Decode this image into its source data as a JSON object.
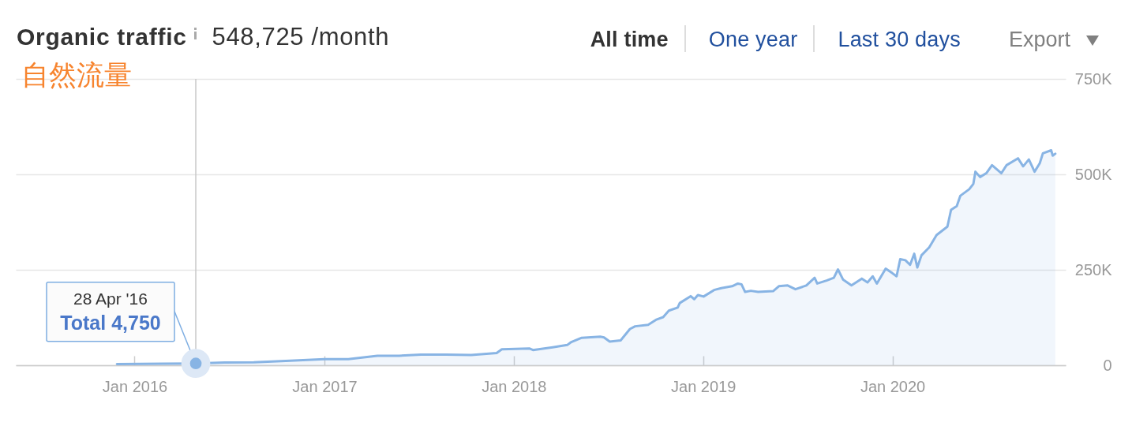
{
  "chart_data": {
    "type": "area",
    "title": "Organic traffic",
    "subtitle": "548,725 /month",
    "annotations": [
      "自然流量",
      "All time",
      "One year",
      "Last 30 days",
      "Export",
      "28 Apr '16",
      {
        "text": "Total 4,750",
        "x": "2016-04-28",
        "y": 4750
      }
    ],
    "x": [
      "2015-11-28",
      "2016-02-24",
      "2016-04-28",
      "2016-06-23",
      "2016-08-18",
      "2016-10-27",
      "2017-01-01",
      "2017-02-16",
      "2017-04-13",
      "2017-05-25",
      "2017-07-06",
      "2017-08-23",
      "2017-10-11",
      "2017-11-29",
      "2017-12-09",
      "2018-01-31",
      "2018-02-07",
      "2018-03-17",
      "2018-04-14",
      "2018-04-21",
      "2018-05-12",
      "2018-06-17",
      "2018-06-24",
      "2018-07-05",
      "2018-07-26",
      "2018-08-13",
      "2018-08-23",
      "2018-09-17",
      "2018-10-02",
      "2018-10-16",
      "2018-10-27",
      "2018-11-13",
      "2018-11-17",
      "2018-12-08",
      "2018-12-15",
      "2018-12-22",
      "2019-01-02",
      "2019-01-22",
      "2019-02-05",
      "2019-02-26",
      "2019-03-09",
      "2019-03-16",
      "2019-03-23",
      "2019-04-03",
      "2019-04-17",
      "2019-05-16",
      "2019-05-27",
      "2019-06-13",
      "2019-06-28",
      "2019-07-19",
      "2019-08-04",
      "2019-08-09",
      "2019-08-27",
      "2019-09-10",
      "2019-09-18",
      "2019-09-28",
      "2019-10-14",
      "2019-11-03",
      "2019-11-14",
      "2019-11-24",
      "2019-12-02",
      "2019-12-19",
      "2020-01-01",
      "2020-01-09",
      "2020-01-16",
      "2020-01-26",
      "2020-02-04",
      "2020-02-12",
      "2020-02-18",
      "2020-02-26",
      "2020-03-12",
      "2020-03-26",
      "2020-04-16",
      "2020-04-23",
      "2020-05-04",
      "2020-05-11",
      "2020-05-28",
      "2020-06-05",
      "2020-06-09",
      "2020-06-18",
      "2020-06-30",
      "2020-07-11",
      "2020-07-29",
      "2020-08-08",
      "2020-08-30",
      "2020-09-09",
      "2020-09-20",
      "2020-10-01",
      "2020-10-11",
      "2020-10-17",
      "2020-11-02",
      "2020-11-05",
      "2020-11-10"
    ],
    "series": [
      {
        "color": "#88b4e4",
        "values": [
          3000,
          4000,
          4750,
          7000,
          8000,
          12000,
          16000,
          16000,
          25000,
          25000,
          28000,
          28000,
          27000,
          32000,
          42000,
          44000,
          40000,
          47000,
          53000,
          60000,
          72000,
          75000,
          73000,
          62000,
          65000,
          95000,
          102000,
          106000,
          119000,
          126000,
          143000,
          151000,
          163000,
          181000,
          173000,
          184000,
          180000,
          197000,
          202000,
          207000,
          214000,
          212000,
          192000,
          195000,
          192000,
          194000,
          207000,
          209000,
          199000,
          209000,
          229000,
          214000,
          222000,
          229000,
          251000,
          224000,
          209000,
          227000,
          217000,
          233000,
          214000,
          253000,
          241000,
          233000,
          278000,
          275000,
          263000,
          292000,
          256000,
          288000,
          309000,
          341000,
          363000,
          407000,
          417000,
          444000,
          461000,
          475000,
          507000,
          493000,
          503000,
          524000,
          503000,
          524000,
          542000,
          521000,
          539000,
          507000,
          529000,
          555000,
          563000,
          549000,
          554000
        ]
      }
    ],
    "xlim": [
      "2015-05-17",
      "2020-11-30"
    ],
    "xticks": [
      {
        "value": "2016-01",
        "label": "Jan 2016"
      },
      {
        "value": "2017-01",
        "label": "Jan 2017"
      },
      {
        "value": "2018-01",
        "label": "Jan 2018"
      },
      {
        "value": "2019-01",
        "label": "Jan 2019"
      },
      {
        "value": "2020-01",
        "label": "Jan 2020"
      }
    ],
    "ylim": [
      0,
      750000
    ],
    "yticks": [
      0,
      {
        "value": 250000,
        "label": "250K"
      },
      {
        "value": 500000,
        "label": "500K"
      },
      {
        "value": 750000,
        "label": "750K"
      }
    ],
    "grid": "y",
    "ref_lines": [
      {
        "axis": "x",
        "value": "2016-04-28",
        "color": "#c8c8c8"
      }
    ]
  }
}
